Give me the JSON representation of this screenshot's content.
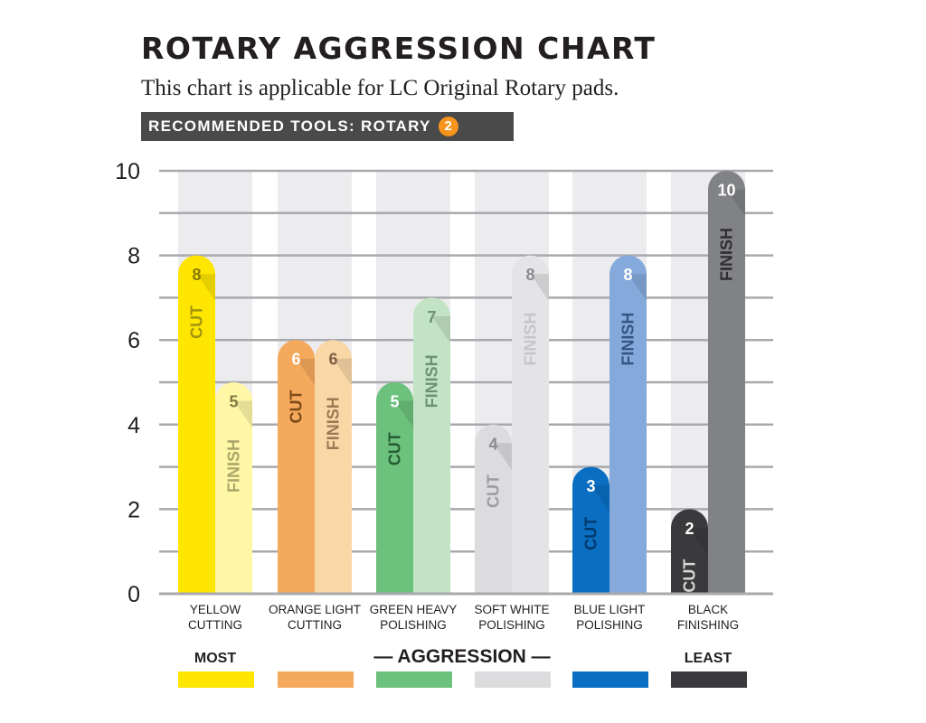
{
  "header": {
    "title": "ROTARY AGGRESSION CHART",
    "subtitle": "This chart is applicable for LC Original Rotary pads.",
    "tools_label": "RECOMMENDED TOOLS: ROTARY",
    "tools_badge": "2"
  },
  "chart_data": {
    "type": "bar",
    "title": "ROTARY AGGRESSION CHART",
    "ylim": [
      0,
      10
    ],
    "y_ticks": [
      "0",
      "2",
      "4",
      "6",
      "8",
      "10"
    ],
    "categories": [
      [
        "YELLOW",
        "CUTTING"
      ],
      [
        "ORANGE LIGHT",
        "CUTTING"
      ],
      [
        "GREEN HEAVY",
        "POLISHING"
      ],
      [
        "SOFT WHITE",
        "POLISHING"
      ],
      [
        "BLUE LIGHT",
        "POLISHING"
      ],
      [
        "BLACK",
        "FINISHING"
      ]
    ],
    "series": [
      {
        "name": "CUT",
        "values": [
          8,
          6,
          5,
          4,
          3,
          2
        ]
      },
      {
        "name": "FINISH",
        "values": [
          5,
          6,
          7,
          8,
          8,
          10
        ]
      }
    ],
    "colors": {
      "cut": [
        "#ffe600",
        "#f5a95c",
        "#6cc17d",
        "#dcdcde",
        "#0a6fc2",
        "#3a3a3d"
      ],
      "finish": [
        "#fff6a6",
        "#fad7a6",
        "#c3e4c4",
        "#e4e4e6",
        "#85a9db",
        "#818285"
      ],
      "label_cut": [
        "#a39410",
        "#7d4b17",
        "#265c33",
        "#9d9d9f",
        "#00386b",
        "#d6d6d6"
      ],
      "label_finish": [
        "#a8a66a",
        "#9a7a55",
        "#6d9173",
        "#c6c6c8",
        "#335585",
        "#2e2e30"
      ],
      "number_cut": [
        "#8a7a00",
        "#ffffff",
        "#ffffff",
        "#8c8c8e",
        "#ffffff",
        "#ffffff"
      ],
      "number_finish": [
        "#7e7a42",
        "#7e6047",
        "#6d9173",
        "#8c8c8e",
        "#ffffff",
        "#ffffff"
      ],
      "track": "#ececee",
      "grid": "#a8a9ad",
      "legend": [
        "#ffe600",
        "#f5a95c",
        "#6cc17d",
        "#dcdcde",
        "#0a6fc2",
        "#3a3a3d"
      ]
    },
    "bar_labels": {
      "cut": "CUT",
      "finish": "FINISH"
    },
    "legend": {
      "most": "MOST",
      "aggression": "— AGGRESSION —",
      "least": "LEAST"
    }
  }
}
